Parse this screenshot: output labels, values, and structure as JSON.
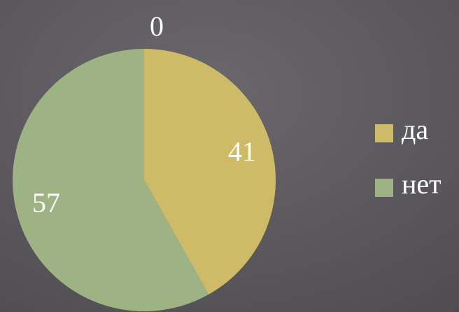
{
  "chart_data": {
    "type": "pie",
    "categories": [
      "да",
      "нет"
    ],
    "values": [
      41,
      57
    ],
    "colors": [
      "#cfbb67",
      "#9db384"
    ],
    "annotations": [
      "0"
    ],
    "legend": "right"
  }
}
